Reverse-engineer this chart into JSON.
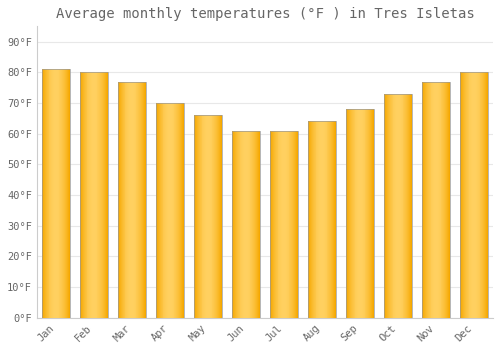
{
  "title": "Average monthly temperatures (°F ) in Tres Isletas",
  "months": [
    "Jan",
    "Feb",
    "Mar",
    "Apr",
    "May",
    "Jun",
    "Jul",
    "Aug",
    "Sep",
    "Oct",
    "Nov",
    "Dec"
  ],
  "values": [
    81,
    80,
    77,
    70,
    66,
    61,
    61,
    64,
    68,
    73,
    77,
    80
  ],
  "bar_color_center": "#FFD060",
  "bar_color_edge": "#F5A800",
  "bar_border_color": "#999999",
  "background_color": "#FFFFFF",
  "fig_background_color": "#FFFFFF",
  "grid_color": "#E8E8E8",
  "ytick_labels": [
    "0°F",
    "10°F",
    "20°F",
    "30°F",
    "40°F",
    "50°F",
    "60°F",
    "70°F",
    "80°F",
    "90°F"
  ],
  "ytick_values": [
    0,
    10,
    20,
    30,
    40,
    50,
    60,
    70,
    80,
    90
  ],
  "ylim": [
    0,
    95
  ],
  "title_fontsize": 10,
  "tick_fontsize": 7.5,
  "font_color": "#666666",
  "font_family": "monospace"
}
